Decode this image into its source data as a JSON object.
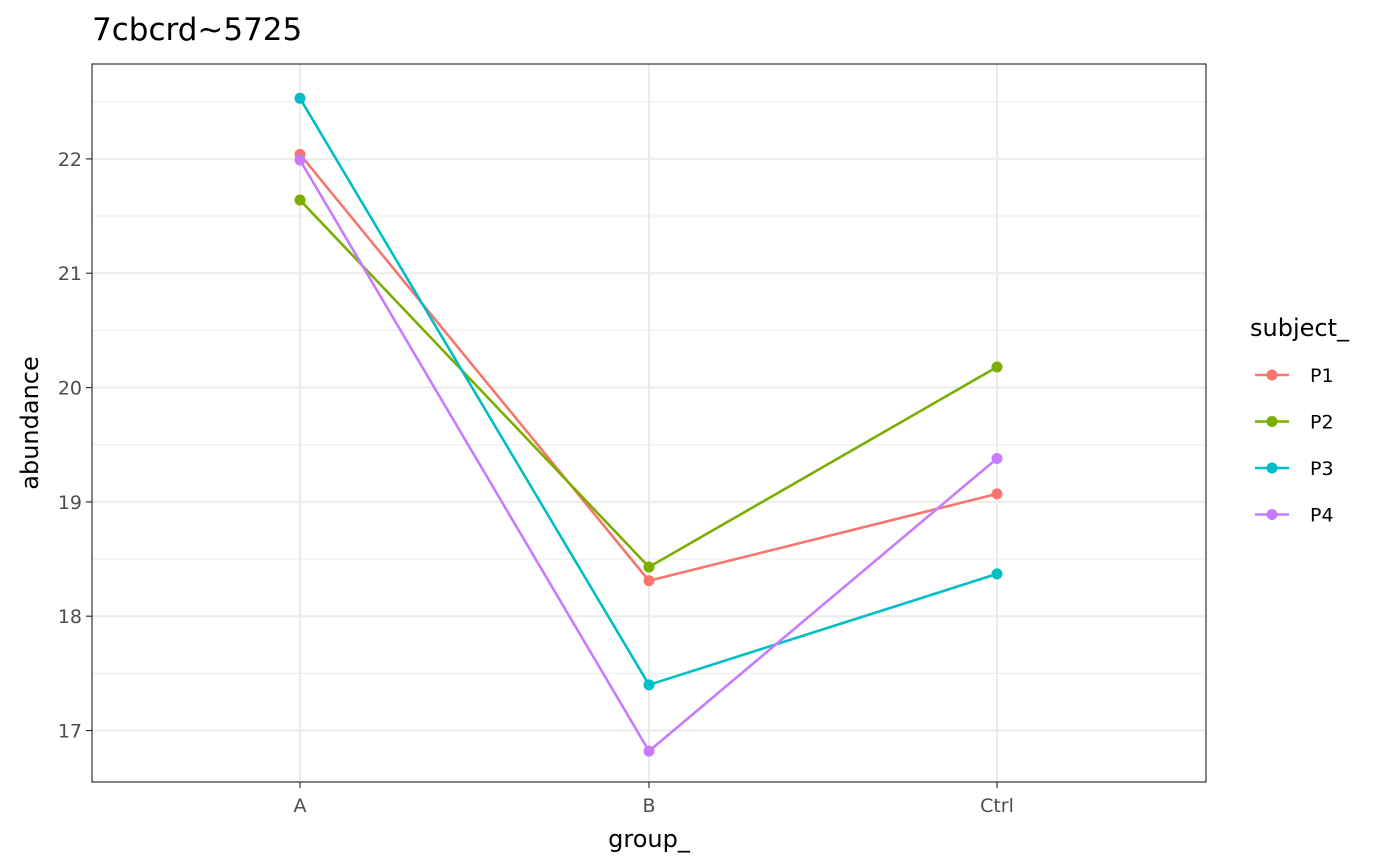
{
  "chart_data": {
    "type": "line",
    "title": "7cbcrd~5725",
    "xlabel": "group_",
    "ylabel": "abundance",
    "categories": [
      "A",
      "B",
      "Ctrl"
    ],
    "yticks": [
      17,
      18,
      19,
      20,
      21,
      22
    ],
    "ylim": [
      16.55,
      22.83
    ],
    "grid": true,
    "legend": {
      "title": "subject_",
      "position": "right"
    },
    "series": [
      {
        "name": "P1",
        "color": "#F8766D",
        "values": [
          22.04,
          18.31,
          19.07
        ]
      },
      {
        "name": "P2",
        "color": "#7CAE00",
        "values": [
          21.64,
          18.43,
          20.18
        ]
      },
      {
        "name": "P3",
        "color": "#00BFC4",
        "values": [
          22.53,
          17.4,
          18.37
        ]
      },
      {
        "name": "P4",
        "color": "#C77CFF",
        "values": [
          21.99,
          16.82,
          19.38
        ]
      }
    ]
  }
}
